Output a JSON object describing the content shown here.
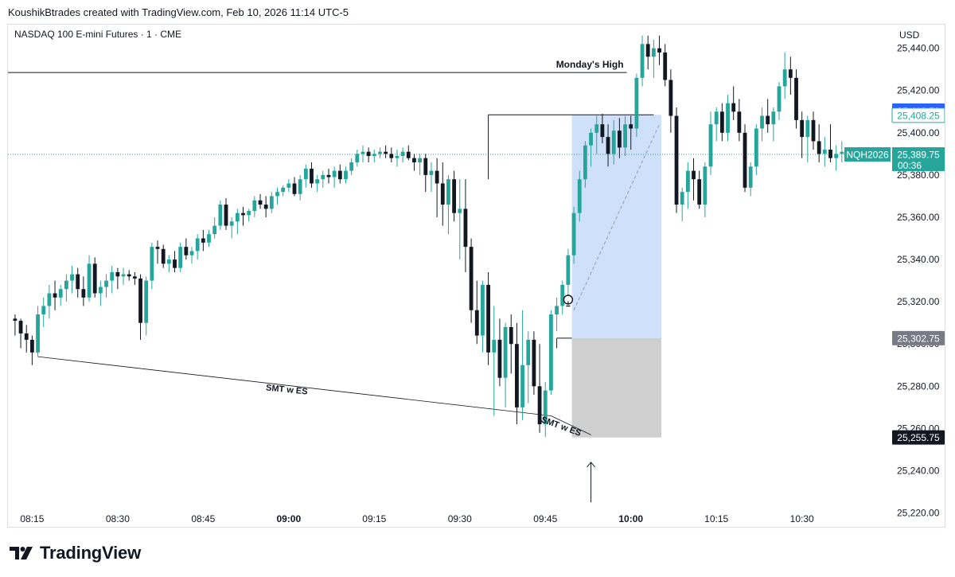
{
  "header": {
    "attribution": "KoushikBtrades created with TradingView.com, Feb 10, 2026 11:14 UTC-5"
  },
  "brand": {
    "name": "TradingView"
  },
  "chart_data": {
    "type": "candlestick",
    "title": "NASDAQ 100 E-mini Futures · 1 · CME",
    "currency": "USD",
    "symbol": "NQH2026",
    "countdown": "00:36",
    "y_ticks": [
      25440,
      25420,
      25400,
      25380,
      25360,
      25340,
      25320,
      25300,
      25280,
      25260,
      25240,
      25220
    ],
    "y_tick_labels": [
      "25,440.00",
      "25,420.00",
      "25,400.00",
      "25,380.00",
      "25,360.00",
      "25,340.00",
      "25,320.00",
      "25,300.00",
      "25,280.00",
      "25,260.00",
      "25,240.00",
      "25,220.00"
    ],
    "ylim": [
      25212,
      25452
    ],
    "x_ticks": [
      {
        "label": "08:15",
        "index": 3,
        "bold": false
      },
      {
        "label": "08:30",
        "index": 18,
        "bold": false
      },
      {
        "label": "08:45",
        "index": 33,
        "bold": false
      },
      {
        "label": "09:00",
        "index": 48,
        "bold": true
      },
      {
        "label": "09:15",
        "index": 63,
        "bold": false
      },
      {
        "label": "09:30",
        "index": 78,
        "bold": false
      },
      {
        "label": "09:45",
        "index": 93,
        "bold": false
      },
      {
        "label": "10:00",
        "index": 108,
        "bold": true
      },
      {
        "label": "10:15",
        "index": 123,
        "bold": false
      },
      {
        "label": "10:30",
        "index": 138,
        "bold": false
      }
    ],
    "price_labels": {
      "high_marker": {
        "value": 25410.5,
        "text": "25,410.50"
      },
      "mid_marker": {
        "value": 25408.25,
        "text": "25,408.25"
      },
      "current": {
        "value": 25389.75,
        "text": "25,389.75"
      },
      "entry": {
        "value": 25302.75,
        "text": "25,302.75"
      },
      "stop": {
        "value": 25255.75,
        "text": "25,255.75"
      }
    },
    "annotations": {
      "mondays_high": {
        "label": "Monday's High",
        "value": 25428.5
      },
      "smt_long": {
        "label": "SMT w ES"
      },
      "smt_short": {
        "label": "SMT w ES"
      },
      "target_level": 25408.5,
      "position": {
        "entry": 25302.75,
        "target": 25408.5,
        "stop": 25255.75,
        "start_index": 98,
        "end_index": 113
      }
    },
    "candles": [
      [
        25312,
        25314,
        25304,
        25311
      ],
      [
        25311,
        25312,
        25298,
        25305
      ],
      [
        25305,
        25309,
        25296,
        25302
      ],
      [
        25302,
        25304,
        25290,
        25296
      ],
      [
        25296,
        25318,
        25294,
        25314
      ],
      [
        25314,
        25322,
        25308,
        25318
      ],
      [
        25318,
        25328,
        25312,
        25324
      ],
      [
        25324,
        25330,
        25316,
        25322
      ],
      [
        25322,
        25328,
        25318,
        25326
      ],
      [
        25326,
        25333,
        25320,
        25330
      ],
      [
        25330,
        25337,
        25324,
        25333
      ],
      [
        25333,
        25336,
        25322,
        25326
      ],
      [
        25326,
        25332,
        25318,
        25322
      ],
      [
        25322,
        25342,
        25320,
        25338
      ],
      [
        25338,
        25341,
        25322,
        25324
      ],
      [
        25324,
        25330,
        25318,
        25327
      ],
      [
        25327,
        25333,
        25322,
        25330
      ],
      [
        25330,
        25337,
        25324,
        25334
      ],
      [
        25334,
        25336,
        25326,
        25332
      ],
      [
        25332,
        25336,
        25328,
        25333
      ],
      [
        25333,
        25335,
        25330,
        25332
      ],
      [
        25332,
        25334,
        25328,
        25331
      ],
      [
        25331,
        25333,
        25302,
        25310
      ],
      [
        25310,
        25332,
        25304,
        25330
      ],
      [
        25330,
        25348,
        25326,
        25346
      ],
      [
        25346,
        25349,
        25338,
        25345
      ],
      [
        25345,
        25347,
        25336,
        25338
      ],
      [
        25338,
        25342,
        25334,
        25340
      ],
      [
        25340,
        25344,
        25334,
        25336
      ],
      [
        25336,
        25348,
        25334,
        25346
      ],
      [
        25346,
        25350,
        25340,
        25342
      ],
      [
        25342,
        25346,
        25338,
        25344
      ],
      [
        25344,
        25352,
        25340,
        25350
      ],
      [
        25350,
        25354,
        25344,
        25348
      ],
      [
        25348,
        25354,
        25346,
        25352
      ],
      [
        25352,
        25360,
        25350,
        25356
      ],
      [
        25356,
        25368,
        25354,
        25366
      ],
      [
        25366,
        25369,
        25354,
        25356
      ],
      [
        25356,
        25360,
        25350,
        25358
      ],
      [
        25358,
        25364,
        25352,
        25362
      ],
      [
        25362,
        25365,
        25356,
        25361
      ],
      [
        25361,
        25364,
        25358,
        25363
      ],
      [
        25363,
        25370,
        25360,
        25368
      ],
      [
        25368,
        25371,
        25364,
        25366
      ],
      [
        25366,
        25370,
        25360,
        25364
      ],
      [
        25364,
        25372,
        25362,
        25370
      ],
      [
        25370,
        25374,
        25366,
        25372
      ],
      [
        25372,
        25375,
        25370,
        25374
      ],
      [
        25374,
        25378,
        25372,
        25376
      ],
      [
        25376,
        25379,
        25370,
        25371
      ],
      [
        25371,
        25380,
        25368,
        25378
      ],
      [
        25378,
        25385,
        25374,
        25383
      ],
      [
        25383,
        25386,
        25374,
        25376
      ],
      [
        25376,
        25380,
        25372,
        25378
      ],
      [
        25378,
        25382,
        25374,
        25380
      ],
      [
        25380,
        25383,
        25376,
        25379
      ],
      [
        25379,
        25384,
        25374,
        25382
      ],
      [
        25382,
        25385,
        25376,
        25378
      ],
      [
        25378,
        25384,
        25376,
        25382
      ],
      [
        25382,
        25388,
        25380,
        25386
      ],
      [
        25386,
        25392,
        25384,
        25390
      ],
      [
        25390,
        25394,
        25386,
        25391
      ],
      [
        25391,
        25393,
        25386,
        25389
      ],
      [
        25389,
        25392,
        25386,
        25390
      ],
      [
        25390,
        25393,
        25388,
        25391
      ],
      [
        25391,
        25394,
        25388,
        25390
      ],
      [
        25390,
        25393,
        25386,
        25388
      ],
      [
        25388,
        25392,
        25384,
        25389
      ],
      [
        25389,
        25393,
        25386,
        25391
      ],
      [
        25391,
        25394,
        25387,
        25388
      ],
      [
        25388,
        25390,
        25382,
        25386
      ],
      [
        25386,
        25390,
        25380,
        25388
      ],
      [
        25388,
        25390,
        25372,
        25380
      ],
      [
        25380,
        25386,
        25372,
        25382
      ],
      [
        25382,
        25388,
        25360,
        25376
      ],
      [
        25376,
        25386,
        25356,
        25366
      ],
      [
        25366,
        25380,
        25352,
        25378
      ],
      [
        25378,
        25382,
        25358,
        25362
      ],
      [
        25362,
        25378,
        25340,
        25364
      ],
      [
        25364,
        25378,
        25334,
        25346
      ],
      [
        25346,
        25350,
        25310,
        25316
      ],
      [
        25316,
        25330,
        25300,
        25304
      ],
      [
        25304,
        25330,
        25296,
        25328
      ],
      [
        25328,
        25334,
        25290,
        25296
      ],
      [
        25296,
        25318,
        25266,
        25302
      ],
      [
        25302,
        25312,
        25280,
        25284
      ],
      [
        25284,
        25310,
        25270,
        25308
      ],
      [
        25308,
        25314,
        25286,
        25300
      ],
      [
        25300,
        25310,
        25262,
        25270
      ],
      [
        25270,
        25316,
        25264,
        25290
      ],
      [
        25290,
        25306,
        25272,
        25302
      ],
      [
        25302,
        25306,
        25276,
        25280
      ],
      [
        25280,
        25300,
        25258,
        25262
      ],
      [
        25262,
        25282,
        25256,
        25278
      ],
      [
        25278,
        25316,
        25276,
        25314
      ],
      [
        25314,
        25322,
        25306,
        25318
      ],
      [
        25318,
        25330,
        25314,
        25328
      ],
      [
        25328,
        25345,
        25322,
        25342
      ],
      [
        25342,
        25365,
        25338,
        25362
      ],
      [
        25362,
        25382,
        25358,
        25378
      ],
      [
        25378,
        25396,
        25374,
        25394
      ],
      [
        25394,
        25402,
        25384,
        25400
      ],
      [
        25400,
        25408,
        25390,
        25404
      ],
      [
        25404,
        25409,
        25395,
        25398
      ],
      [
        25398,
        25404,
        25384,
        25390
      ],
      [
        25390,
        25406,
        25385,
        25401
      ],
      [
        25401,
        25407,
        25388,
        25393
      ],
      [
        25393,
        25408,
        25389,
        25404
      ],
      [
        25404,
        25408,
        25392,
        25402
      ],
      [
        25402,
        25428,
        25398,
        25426
      ],
      [
        25426,
        25446,
        25422,
        25442
      ],
      [
        25442,
        25446,
        25430,
        25436
      ],
      [
        25436,
        25444,
        25426,
        25440
      ],
      [
        25440,
        25446,
        25432,
        25438
      ],
      [
        25438,
        25442,
        25422,
        25425
      ],
      [
        25425,
        25430,
        25400,
        25408
      ],
      [
        25408,
        25412,
        25362,
        25366
      ],
      [
        25366,
        25374,
        25358,
        25372
      ],
      [
        25372,
        25386,
        25364,
        25382
      ],
      [
        25382,
        25388,
        25368,
        25378
      ],
      [
        25378,
        25382,
        25364,
        25366
      ],
      [
        25366,
        25386,
        25360,
        25384
      ],
      [
        25384,
        25410,
        25380,
        25404
      ],
      [
        25404,
        25412,
        25396,
        25410
      ],
      [
        25410,
        25414,
        25396,
        25400
      ],
      [
        25400,
        25418,
        25396,
        25414
      ],
      [
        25414,
        25422,
        25406,
        25410
      ],
      [
        25410,
        25416,
        25396,
        25400
      ],
      [
        25400,
        25404,
        25372,
        25374
      ],
      [
        25374,
        25386,
        25370,
        25384
      ],
      [
        25384,
        25404,
        25380,
        25402
      ],
      [
        25402,
        25412,
        25396,
        25408
      ],
      [
        25408,
        25416,
        25400,
        25404
      ],
      [
        25404,
        25412,
        25396,
        25410
      ],
      [
        25410,
        25424,
        25406,
        25422
      ],
      [
        25422,
        25438,
        25416,
        25430
      ],
      [
        25430,
        25436,
        25418,
        25426
      ],
      [
        25426,
        25430,
        25402,
        25406
      ],
      [
        25406,
        25410,
        25388,
        25398
      ],
      [
        25398,
        25408,
        25386,
        25406
      ],
      [
        25406,
        25410,
        25392,
        25396
      ],
      [
        25396,
        25404,
        25386,
        25390
      ],
      [
        25390,
        25398,
        25384,
        25392
      ],
      [
        25392,
        25404,
        25386,
        25388
      ],
      [
        25388,
        25394,
        25382,
        25390
      ],
      [
        25390,
        25396,
        25386,
        25391
      ]
    ]
  }
}
